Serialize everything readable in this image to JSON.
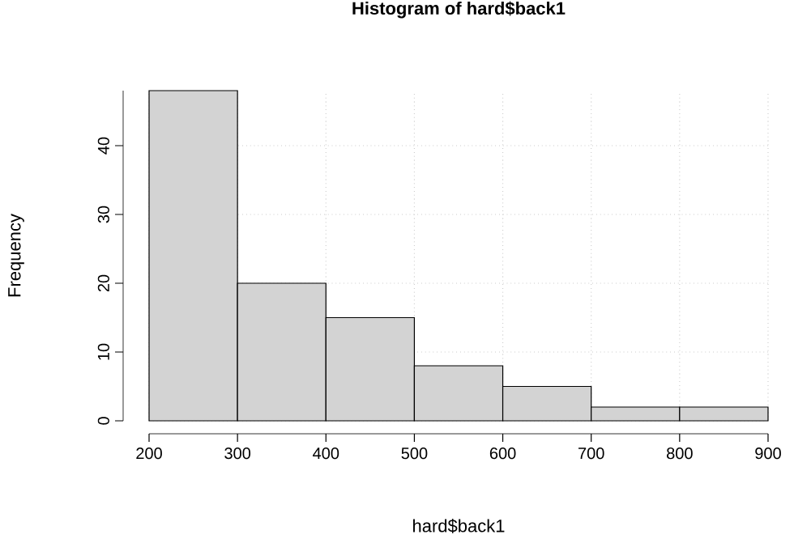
{
  "chart_data": {
    "type": "histogram",
    "title": "Histogram of hard$back1",
    "xlabel": "hard$back1",
    "ylabel": "Frequency",
    "bins": [
      200,
      300,
      400,
      500,
      600,
      700,
      800,
      900
    ],
    "values": [
      48,
      20,
      15,
      8,
      5,
      2,
      2
    ],
    "color": "#d3d3d3",
    "xlim": [
      200,
      900
    ],
    "ylim": [
      0,
      48
    ],
    "xticks": [
      200,
      300,
      400,
      500,
      600,
      700,
      800,
      900
    ],
    "yticks": [
      0,
      10,
      20,
      30,
      40
    ],
    "grid": true
  }
}
